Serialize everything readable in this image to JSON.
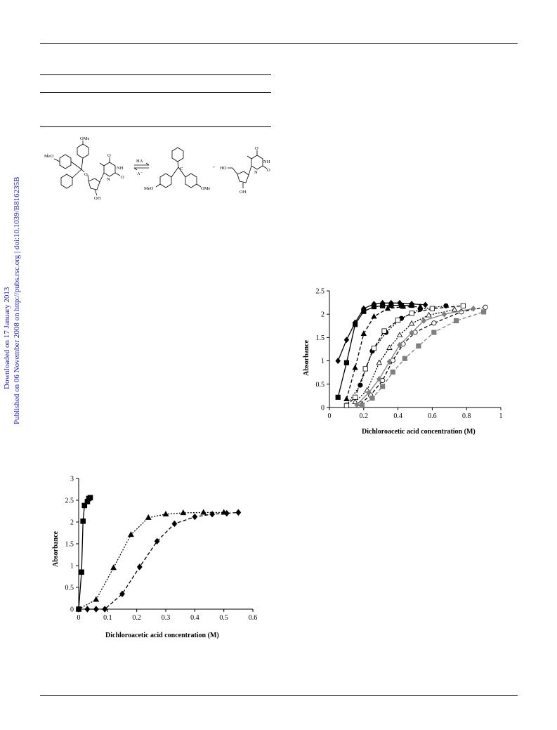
{
  "margin": {
    "downloaded": "Downloaded on 17 January 2013",
    "published": "Published on 06 November 2008 on http://pubs.rsc.org | doi:10.1039/B816235B"
  },
  "scheme": {
    "labels": {
      "ome_top": "OMe",
      "meo_left": "MeO",
      "o_ether": "O",
      "oh_left": "OH",
      "o_carbonyl1": "O",
      "n_ring1": "N",
      "nh1": "NH",
      "o_carbonyl2": "O",
      "ha": "HA",
      "a_minus": "A⁻",
      "cation": "C",
      "meo_bottom": "MeO",
      "ome_bottom": "OMe",
      "plus": "+",
      "ho": "HO",
      "oh_right": "OH",
      "o_carbonyl3": "O",
      "n_ring2": "N",
      "nh2": "NH",
      "o_carbonyl4": "O"
    }
  },
  "chart_data": [
    {
      "type": "scatter",
      "xlabel": "Dichloroacetic acid concentration (M)",
      "ylabel": "Absorbance",
      "xlim": [
        0,
        1
      ],
      "ylim": [
        0,
        2.5
      ],
      "xticks": [
        0,
        0.2,
        0.4,
        0.6,
        0.8,
        1
      ],
      "xtick_labels": [
        "0",
        "0.2",
        "0.4",
        "0.6",
        "0.8",
        "1"
      ],
      "yticks": [
        0,
        0.5,
        1,
        1.5,
        2,
        2.5
      ],
      "ytick_labels": [
        "0",
        "0.5",
        "1",
        "1.5",
        "2",
        "2.5"
      ],
      "grid": false,
      "legend": "none",
      "series": [
        {
          "marker": "diamond",
          "fill": "#000000",
          "line": "solid",
          "x": [
            0.05,
            0.1,
            0.15,
            0.2,
            0.26,
            0.31,
            0.36,
            0.41,
            0.48,
            0.56
          ],
          "y": [
            1.0,
            1.45,
            1.82,
            2.12,
            2.22,
            2.24,
            2.24,
            2.24,
            2.22,
            2.2
          ]
        },
        {
          "marker": "square",
          "fill": "#000000",
          "line": "solid",
          "x": [
            0.05,
            0.1,
            0.15,
            0.2,
            0.26,
            0.31,
            0.36,
            0.42,
            0.48
          ],
          "y": [
            0.22,
            0.96,
            1.78,
            2.06,
            2.16,
            2.18,
            2.19,
            2.19,
            2.19
          ]
        },
        {
          "marker": "triangle",
          "fill": "#000000",
          "line": "dashed",
          "x": [
            0.1,
            0.15,
            0.2,
            0.26,
            0.34,
            0.43,
            0.53
          ],
          "y": [
            0.18,
            0.85,
            1.58,
            1.95,
            2.12,
            2.16,
            2.16
          ]
        },
        {
          "marker": "circle",
          "fill": "#000000",
          "line": "dotted",
          "x": [
            0.1,
            0.18,
            0.25,
            0.33,
            0.42,
            0.53,
            0.68
          ],
          "y": [
            0.05,
            0.48,
            1.21,
            1.61,
            1.91,
            2.11,
            2.18
          ]
        },
        {
          "marker": "square",
          "fill": "#ffffff",
          "line": "dashed",
          "x": [
            0.1,
            0.15,
            0.21,
            0.26,
            0.32,
            0.4,
            0.48,
            0.6,
            0.78
          ],
          "y": [
            0.04,
            0.22,
            0.83,
            1.27,
            1.64,
            1.87,
            2.02,
            2.12,
            2.18
          ]
        },
        {
          "marker": "triangle",
          "fill": "#ffffff",
          "line": "dotted",
          "x": [
            0.15,
            0.22,
            0.29,
            0.35,
            0.41,
            0.48,
            0.58,
            0.73
          ],
          "y": [
            0.12,
            0.37,
            0.96,
            1.28,
            1.55,
            1.8,
            1.98,
            2.1
          ]
        },
        {
          "marker": "circle",
          "fill": "#ffffff",
          "line": "dashed",
          "x": [
            0.18,
            0.24,
            0.31,
            0.37,
            0.43,
            0.5,
            0.61,
            0.77,
            0.91
          ],
          "y": [
            0.08,
            0.26,
            0.58,
            1.01,
            1.36,
            1.61,
            1.81,
            2.05,
            2.15
          ]
        },
        {
          "marker": "diamond",
          "fill": "#7f7f7f",
          "line": "solid",
          "x": [
            0.16,
            0.23,
            0.29,
            0.35,
            0.41,
            0.48,
            0.55,
            0.67,
            0.84
          ],
          "y": [
            0.06,
            0.32,
            0.61,
            0.98,
            1.34,
            1.6,
            1.86,
            2.0,
            2.12
          ]
        },
        {
          "marker": "square",
          "fill": "#7f7f7f",
          "line": "dashed",
          "x": [
            0.19,
            0.25,
            0.31,
            0.37,
            0.44,
            0.52,
            0.61,
            0.74,
            0.9
          ],
          "y": [
            0.05,
            0.2,
            0.45,
            0.76,
            1.05,
            1.32,
            1.61,
            1.86,
            2.05
          ]
        }
      ]
    },
    {
      "type": "scatter",
      "xlabel": "Dichloroacetic acid concentration (M)",
      "ylabel": "Absorbance",
      "xlim": [
        0,
        0.6
      ],
      "ylim": [
        0,
        3
      ],
      "xticks": [
        0,
        0.1,
        0.2,
        0.3,
        0.4,
        0.5,
        0.6
      ],
      "xtick_labels": [
        "0",
        "0.1",
        "0.2",
        "0.3",
        "0.4",
        "0.5",
        "0.6"
      ],
      "yticks": [
        0,
        0.5,
        1,
        1.5,
        2,
        2.5,
        3
      ],
      "ytick_labels": [
        "0",
        "0.5",
        "1",
        "1.5",
        "2",
        "2.5",
        "3"
      ],
      "grid": false,
      "legend": "none",
      "series": [
        {
          "marker": "square",
          "fill": "#000000",
          "line": "solid",
          "x": [
            0,
            0.01,
            0.015,
            0.02,
            0.03,
            0.035,
            0.04
          ],
          "y": [
            0,
            0.85,
            2.02,
            2.38,
            2.47,
            2.54,
            2.56
          ]
        },
        {
          "marker": "triangle",
          "fill": "#000000",
          "line": "dotted",
          "x": [
            0,
            0.06,
            0.12,
            0.18,
            0.24,
            0.3,
            0.36,
            0.43,
            0.5
          ],
          "y": [
            0,
            0.22,
            0.95,
            1.71,
            2.1,
            2.18,
            2.21,
            2.22,
            2.22
          ]
        },
        {
          "marker": "diamond",
          "fill": "#000000",
          "line": "dashed",
          "x": [
            0,
            0.03,
            0.06,
            0.09,
            0.15,
            0.21,
            0.27,
            0.33,
            0.4,
            0.46,
            0.51,
            0.55
          ],
          "y": [
            0,
            0,
            0,
            0,
            0.35,
            0.97,
            1.56,
            1.96,
            2.12,
            2.18,
            2.2,
            2.22
          ]
        }
      ]
    }
  ]
}
